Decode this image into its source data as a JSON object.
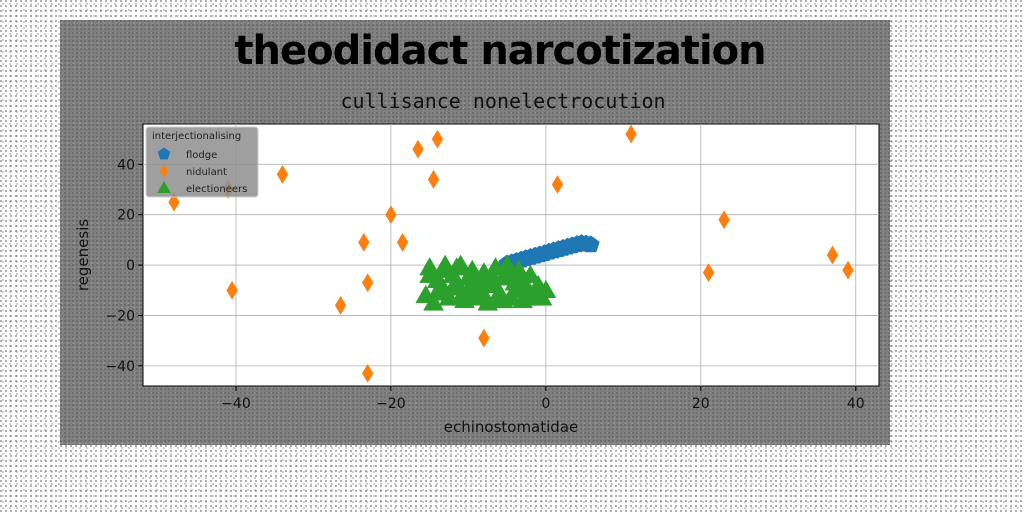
{
  "chart_data": {
    "type": "scatter",
    "suptitle": "theodidact narcotization",
    "title": "cullisance nonelectrocution",
    "xlabel": "echinostomatidae",
    "ylabel": "regenesis",
    "xlim": [
      -52,
      43
    ],
    "ylim": [
      -48,
      56
    ],
    "xticks": [
      -40,
      -20,
      0,
      20,
      40
    ],
    "yticks": [
      -40,
      -20,
      0,
      20,
      40
    ],
    "grid": true,
    "legend": {
      "title": "interjectionalising",
      "placement": "top-left"
    },
    "colors": {
      "flodge": "#1f77b4",
      "nidulant": "#ff7f0e",
      "electioneers": "#2ca02c"
    },
    "series": [
      {
        "name": "flodge",
        "marker": "pentagon",
        "x": [
          -5.0,
          -4.4,
          -3.8,
          -3.2,
          -2.6,
          -2.0,
          -1.4,
          -0.8,
          -0.2,
          0.4,
          1.0,
          1.6,
          2.2,
          2.8,
          3.4,
          4.0,
          4.6,
          5.2,
          5.8
        ],
        "y": [
          0.5,
          1.0,
          1.5,
          2.0,
          2.6,
          3.1,
          3.6,
          4.1,
          4.6,
          5.2,
          5.7,
          6.2,
          6.7,
          7.2,
          7.7,
          8.2,
          8.6,
          8.4,
          8.1
        ]
      },
      {
        "name": "nidulant",
        "marker": "thin_diamond",
        "x": [
          -48,
          -41,
          -40.5,
          -34,
          -26.5,
          -23.5,
          -23,
          -23,
          -20,
          -18.5,
          -16.5,
          -14.5,
          -14,
          -8,
          1.5,
          11,
          21,
          23,
          37,
          39
        ],
        "y": [
          25,
          30,
          -10,
          36,
          -16,
          9,
          -7,
          -43,
          20,
          9,
          46,
          34,
          50,
          -29,
          32,
          52,
          -3,
          18,
          4,
          -2
        ]
      },
      {
        "name": "electioneers",
        "marker": "triangle",
        "x": [
          -15.5,
          -15,
          -14.5,
          -14,
          -13.5,
          -13,
          -12.5,
          -12,
          -11.5,
          -11,
          -10.5,
          -10,
          -9.5,
          -9,
          -8.5,
          -8,
          -7.5,
          -7,
          -6.5,
          -6,
          -5.5,
          -5,
          -4.5,
          -4,
          -3.5,
          -3,
          -2.5,
          -2,
          -1.5,
          -1,
          -0.5,
          0,
          -15,
          -14,
          -13,
          -12,
          -11,
          -10,
          -9,
          -8,
          -7,
          -6,
          -5,
          -4,
          -3,
          -2,
          -1,
          -13.5,
          -11.5,
          -9.5,
          -7.5,
          -5.5,
          -3.5
        ],
        "y": [
          -12,
          -1,
          -15,
          -6,
          -9,
          0,
          -13,
          -4,
          -7,
          0,
          -14,
          -10,
          -2,
          -12,
          -6,
          -3,
          -15,
          -8,
          -1,
          -11,
          -5,
          0,
          -13,
          -7,
          -2,
          -14,
          -9,
          -4,
          -12,
          -8,
          -13,
          -10,
          -4,
          -11,
          -2,
          -9,
          -13,
          -5,
          -8,
          -12,
          -4,
          -14,
          -3,
          -10,
          -6,
          -13,
          -11,
          -8,
          -1,
          -13,
          -8,
          -14,
          -4
        ]
      }
    ]
  }
}
